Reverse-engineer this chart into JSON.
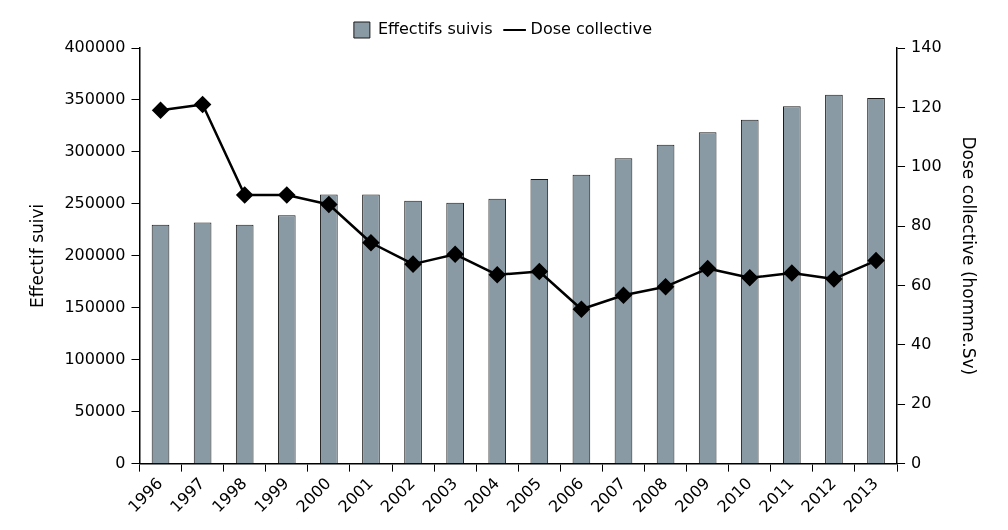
{
  "chart_data": {
    "type": "bar",
    "xlabel": null,
    "ylabel": "Effectif suivi",
    "y2label": "Dose collective (homme.Sv)",
    "categories": [
      "1996",
      "1997",
      "1998",
      "1999",
      "2000",
      "2001",
      "2002",
      "2003",
      "2004",
      "2005",
      "2006",
      "2007",
      "2008",
      "2009",
      "2010",
      "2011",
      "2012",
      "2013"
    ],
    "series": [
      {
        "name": "Effectifs suivis",
        "color": "#8a9aa4",
        "values": [
          230000,
          232000,
          230000,
          239000,
          259000,
          259000,
          253000,
          251000,
          255000,
          274000,
          278000,
          294000,
          307000,
          319000,
          331000,
          344000,
          355000,
          352000
        ]
      },
      {
        "name": "Dose collective",
        "type": "line",
        "axis": "y2",
        "color": "#000000",
        "values": [
          119,
          121,
          90.5,
          90.5,
          87.3,
          74.4,
          67.2,
          70.5,
          63.6,
          64.7,
          52,
          56.7,
          59.6,
          65.7,
          62.6,
          64.2,
          62.2,
          68.4
        ]
      }
    ],
    "ylim": [
      0,
      400000
    ],
    "yticks": [
      0,
      50000,
      100000,
      150000,
      200000,
      250000,
      300000,
      350000,
      400000
    ],
    "y2lim": [
      0,
      140
    ],
    "y2ticks": [
      0,
      20,
      40,
      60,
      80,
      100,
      120,
      140
    ],
    "grid": false,
    "legend": "top",
    "marker": "diamond",
    "line_style": "solid"
  }
}
